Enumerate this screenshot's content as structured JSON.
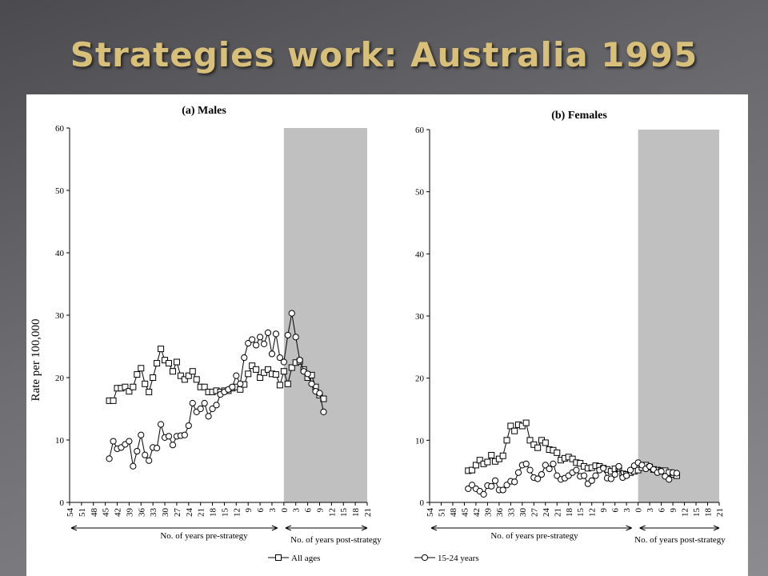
{
  "title": "Strategies work: Australia 1995",
  "chart_data": [
    {
      "type": "line",
      "title": "(a) Males",
      "ylabel": "Rate per 100,000",
      "xlabel_left": "No. of years pre-strategy",
      "xlabel_right": "No. of years post-strategy",
      "shaded_range": [
        0,
        21
      ],
      "xlim": [
        -54,
        21
      ],
      "xticks": [
        {
          "value": -54,
          "label": "54"
        },
        {
          "value": -51,
          "label": "51"
        },
        {
          "value": -48,
          "label": "48"
        },
        {
          "value": -45,
          "label": "45"
        },
        {
          "value": -42,
          "label": "42"
        },
        {
          "value": -39,
          "label": "39"
        },
        {
          "value": -36,
          "label": "36"
        },
        {
          "value": -33,
          "label": "33"
        },
        {
          "value": -30,
          "label": "30"
        },
        {
          "value": -27,
          "label": "27"
        },
        {
          "value": -24,
          "label": "24"
        },
        {
          "value": -21,
          "label": "21"
        },
        {
          "value": -18,
          "label": "18"
        },
        {
          "value": -15,
          "label": "15"
        },
        {
          "value": -12,
          "label": "12"
        },
        {
          "value": -9,
          "label": "9"
        },
        {
          "value": -6,
          "label": "6"
        },
        {
          "value": -3,
          "label": "3"
        },
        0,
        3,
        6,
        9,
        12,
        15,
        18,
        21
      ],
      "ylim": [
        0,
        60
      ],
      "yticks": [
        0,
        10,
        20,
        30,
        40,
        50,
        60
      ],
      "x": [
        -44,
        -43,
        -42,
        -41,
        -40,
        -39,
        -38,
        -37,
        -36,
        -35,
        -34,
        -33,
        -32,
        -31,
        -30,
        -29,
        -28,
        -27,
        -26,
        -25,
        -24,
        -23,
        -22,
        -21,
        -20,
        -19,
        -18,
        -17,
        -16,
        -15,
        -14,
        -13,
        -12,
        -11,
        -10,
        -9,
        -8,
        -7,
        -6,
        -5,
        -4,
        -3,
        -2,
        -1,
        0,
        1,
        2,
        3,
        4,
        5,
        6,
        7,
        8,
        9,
        10
      ],
      "series": [
        {
          "name": "All ages",
          "color": "#000000",
          "marker": "square",
          "values": [
            16.3,
            16.3,
            18.3,
            18.3,
            18.5,
            17.8,
            18.5,
            20.5,
            21.5,
            19,
            17.7,
            20,
            22.3,
            24.6,
            22.8,
            22.3,
            21,
            22.5,
            20.3,
            19.7,
            20.3,
            21,
            19.7,
            18.5,
            18.5,
            17.7,
            17.7,
            17.9,
            17.7,
            17.9,
            17.9,
            18.3,
            18.5,
            18.1,
            18.9,
            20.6,
            21.9,
            21.3,
            20,
            20.8,
            21.3,
            20.6,
            20.5,
            18.8,
            21,
            19,
            21.6,
            22.4,
            22.6,
            21.3,
            20,
            20.4,
            18.5,
            17.2,
            16.6
          ]
        },
        {
          "name": "15-24 years",
          "color": "#000000",
          "marker": "circle",
          "values": [
            7,
            9.8,
            8.6,
            8.8,
            9.3,
            9.8,
            5.8,
            8.2,
            10.8,
            7.6,
            6.7,
            8.8,
            8.7,
            12.5,
            10.4,
            10.6,
            9.2,
            10.6,
            10.7,
            10.8,
            12.3,
            15.9,
            14.5,
            15,
            15.9,
            13.8,
            15,
            15.6,
            17.3,
            17.7,
            18.1,
            18.5,
            20.3,
            19,
            23.2,
            25.5,
            26.1,
            25.2,
            26.5,
            25.4,
            27.2,
            23.8,
            27,
            23.2,
            22.5,
            26.8,
            30.3,
            26.5,
            22.8,
            21,
            20.6,
            19,
            17.8,
            17.5,
            14.5
          ]
        }
      ]
    },
    {
      "type": "line",
      "title": "(b) Females",
      "xlabel_left": "No. of years pre-strategy",
      "xlabel_right": "No. of years post-strategy",
      "shaded_range": [
        0,
        21
      ],
      "xlim": [
        -54,
        21
      ],
      "xticks": [
        {
          "value": -54,
          "label": "54"
        },
        {
          "value": -51,
          "label": "51"
        },
        {
          "value": -48,
          "label": "48"
        },
        {
          "value": -45,
          "label": "45"
        },
        {
          "value": -42,
          "label": "42"
        },
        {
          "value": -39,
          "label": "39"
        },
        {
          "value": -36,
          "label": "36"
        },
        {
          "value": -33,
          "label": "33"
        },
        {
          "value": -30,
          "label": "30"
        },
        {
          "value": -27,
          "label": "27"
        },
        {
          "value": -24,
          "label": "24"
        },
        {
          "value": -21,
          "label": "21"
        },
        {
          "value": -18,
          "label": "18"
        },
        {
          "value": -15,
          "label": "15"
        },
        {
          "value": -12,
          "label": "12"
        },
        {
          "value": -9,
          "label": "9"
        },
        {
          "value": -6,
          "label": "6"
        },
        {
          "value": -3,
          "label": "3"
        },
        0,
        3,
        6,
        9,
        12,
        15,
        18,
        21
      ],
      "ylim": [
        0,
        60
      ],
      "yticks": [
        0,
        10,
        20,
        30,
        40,
        50,
        60
      ],
      "x": [
        -44,
        -43,
        -42,
        -41,
        -40,
        -39,
        -38,
        -37,
        -36,
        -35,
        -34,
        -33,
        -32,
        -31,
        -30,
        -29,
        -28,
        -27,
        -26,
        -25,
        -24,
        -23,
        -22,
        -21,
        -20,
        -19,
        -18,
        -17,
        -16,
        -15,
        -14,
        -13,
        -12,
        -11,
        -10,
        -9,
        -8,
        -7,
        -6,
        -5,
        -4,
        -3,
        -2,
        -1,
        0,
        1,
        2,
        3,
        4,
        5,
        6,
        7,
        8,
        9,
        10
      ],
      "series": [
        {
          "color": "#000000",
          "marker": "square",
          "values": [
            5.1,
            5.2,
            6,
            6.8,
            6.2,
            6.5,
            7.6,
            6.6,
            7,
            7.5,
            10,
            12.3,
            11.5,
            12.5,
            12.3,
            12.8,
            10,
            9.3,
            8.8,
            10,
            9.6,
            8.5,
            8.4,
            8,
            6.8,
            7.1,
            7.3,
            7,
            6.4,
            6.3,
            5.8,
            5.5,
            5.6,
            5.9,
            5.8,
            5.5,
            5.3,
            5,
            5.4,
            5.5,
            4.6,
            4.5,
            4.8,
            5,
            5.2,
            5.6,
            6,
            5.7,
            5.3,
            5.2,
            5.1,
            5.1,
            4.8,
            4.5,
            4.3
          ]
        },
        {
          "color": "#000000",
          "marker": "circle",
          "values": [
            2.2,
            2.8,
            2.2,
            1.8,
            1.3,
            2.7,
            2.6,
            3.5,
            2,
            2,
            2.8,
            3.4,
            3.3,
            4.8,
            6,
            6.2,
            5.2,
            4,
            3.8,
            4.5,
            6,
            5.4,
            6.2,
            4.3,
            3.7,
            3.9,
            4.3,
            4.8,
            5.2,
            4.2,
            4.3,
            3,
            3.5,
            4.3,
            5.2,
            5.5,
            3.9,
            3.8,
            4.5,
            5.8,
            4,
            4.3,
            5.2,
            5.9,
            6.4,
            6,
            5.4,
            5.8,
            5.3,
            4.8,
            5,
            4.2,
            3.7,
            4.8,
            4.7
          ]
        }
      ]
    }
  ]
}
